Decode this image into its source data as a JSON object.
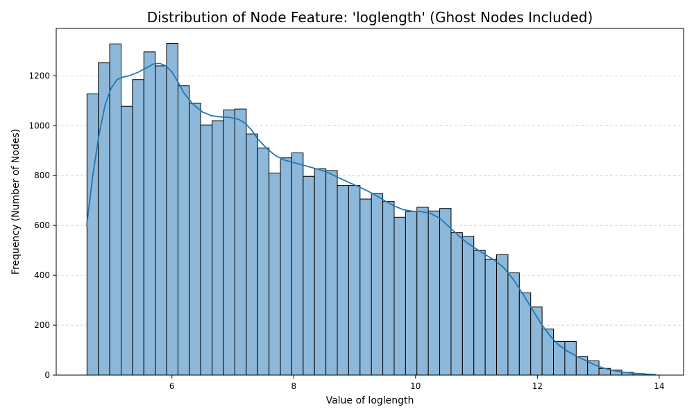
{
  "chart_data": {
    "type": "bar",
    "subtype": "histogram",
    "title": "Distribution of Node Feature: 'loglength' (Ghost Nodes Included)",
    "xlabel": "Value of loglength",
    "ylabel": "Frequency (Number of Nodes)",
    "xlim": [
      4.1,
      14.4
    ],
    "ylim": [
      0,
      1390
    ],
    "xticks": [
      6,
      8,
      10,
      12,
      14
    ],
    "yticks": [
      0,
      200,
      400,
      600,
      800,
      1000,
      1200
    ],
    "grid": "y-dashed",
    "bin_start": 4.605,
    "bin_width": 0.1868,
    "values": [
      1128,
      1252,
      1328,
      1078,
      1185,
      1296,
      1240,
      1330,
      1160,
      1090,
      1003,
      1020,
      1063,
      1067,
      967,
      911,
      810,
      871,
      891,
      797,
      827,
      820,
      760,
      760,
      706,
      728,
      696,
      633,
      656,
      673,
      658,
      668,
      571,
      556,
      500,
      464,
      483,
      410,
      330,
      273,
      185,
      135,
      135,
      74,
      57,
      27,
      20,
      11,
      6,
      2
    ],
    "kde": {
      "x": [
        4.6,
        4.7,
        4.8,
        4.9,
        5.0,
        5.1,
        5.2,
        5.3,
        5.45,
        5.6,
        5.7,
        5.8,
        5.9,
        6.0,
        6.1,
        6.2,
        6.35,
        6.5,
        6.65,
        6.8,
        6.95,
        7.1,
        7.2,
        7.3,
        7.4,
        7.55,
        7.7,
        7.85,
        8.0,
        8.15,
        8.3,
        8.45,
        8.6,
        8.75,
        8.9,
        9.05,
        9.2,
        9.35,
        9.5,
        9.65,
        9.8,
        9.95,
        10.1,
        10.25,
        10.4,
        10.55,
        10.7,
        10.85,
        11.0,
        11.15,
        11.3,
        11.45,
        11.6,
        11.75,
        11.9,
        12.05,
        12.2,
        12.35,
        12.5,
        12.65,
        12.8,
        12.95,
        13.1,
        13.25,
        13.4,
        13.55,
        13.7,
        13.85,
        13.95
      ],
      "y": [
        600,
        800,
        960,
        1080,
        1150,
        1185,
        1195,
        1200,
        1215,
        1235,
        1248,
        1250,
        1240,
        1215,
        1175,
        1130,
        1085,
        1055,
        1040,
        1035,
        1033,
        1025,
        1010,
        985,
        950,
        910,
        880,
        862,
        852,
        842,
        832,
        822,
        808,
        790,
        773,
        757,
        740,
        720,
        698,
        678,
        663,
        657,
        655,
        648,
        628,
        595,
        560,
        530,
        505,
        482,
        460,
        430,
        385,
        330,
        270,
        210,
        160,
        120,
        95,
        75,
        57,
        40,
        27,
        18,
        12,
        8,
        5,
        3,
        2
      ]
    }
  }
}
